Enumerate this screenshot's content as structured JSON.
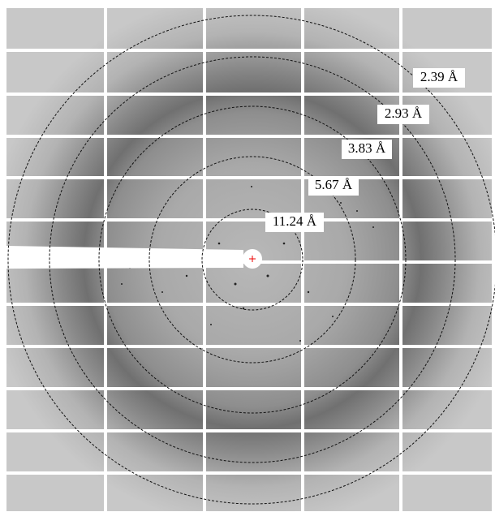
{
  "rings": [
    {
      "label": "11.24 Å"
    },
    {
      "label": "5.67 Å"
    },
    {
      "label": "3.83 Å"
    },
    {
      "label": "2.93 Å"
    },
    {
      "label": "2.39 Å"
    }
  ]
}
